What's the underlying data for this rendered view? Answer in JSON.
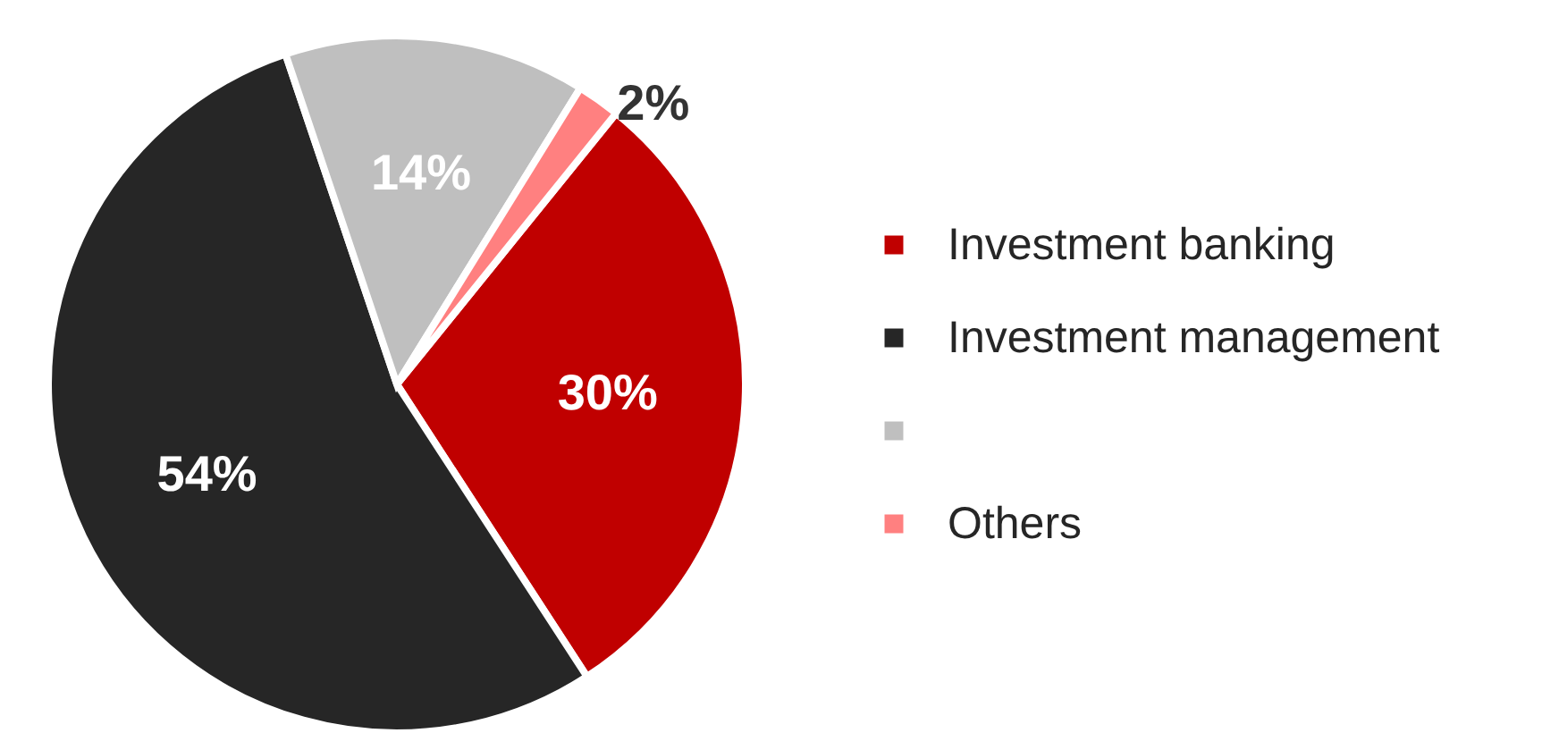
{
  "chart_data": {
    "type": "pie",
    "categories": [
      "Investment banking",
      "Investment management",
      null,
      "Others"
    ],
    "values": [
      30,
      54,
      14,
      2
    ],
    "colors": [
      "#c00000",
      "#262626",
      "#bfbfbf",
      "#ff8080"
    ],
    "value_labels": [
      "30%",
      "54%",
      "14%",
      "2%"
    ],
    "legend": "right"
  }
}
